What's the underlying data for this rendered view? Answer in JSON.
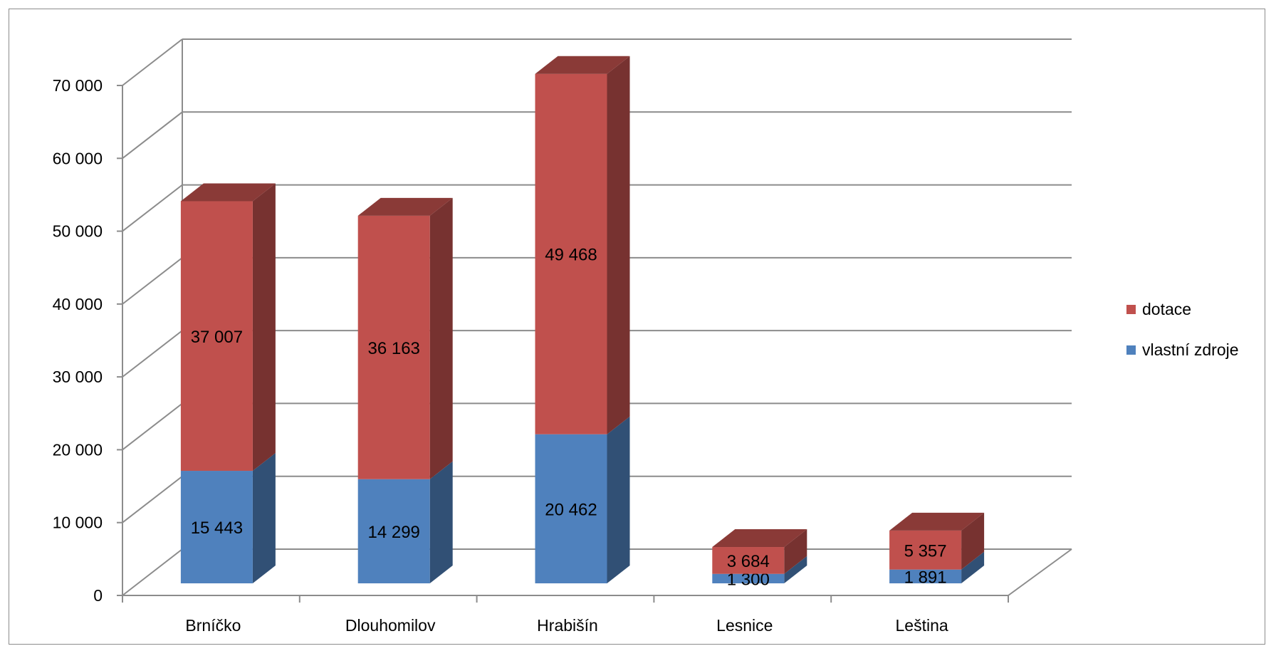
{
  "chart_data": {
    "type": "bar",
    "stacked": true,
    "three_d": true,
    "title": "",
    "xlabel": "",
    "ylabel": "",
    "categories": [
      "Brníčko",
      "Dlouhomilov",
      "Hrabišín",
      "Lesnice",
      "Leština"
    ],
    "series": [
      {
        "name": "vlastní zdroje",
        "color": "#4f81bd",
        "values": [
          15443,
          14299,
          20462,
          1300,
          1891
        ],
        "labels": [
          "15 443",
          "14 299",
          "20 462",
          "1 300",
          "1 891"
        ]
      },
      {
        "name": "dotace",
        "color": "#c0504d",
        "values": [
          37007,
          36163,
          49468,
          3684,
          5357
        ],
        "labels": [
          "37 007",
          "36 163",
          "49 468",
          "3 684",
          "5 357"
        ]
      }
    ],
    "ylim": [
      0,
      70000
    ],
    "yticks": [
      0,
      10000,
      20000,
      30000,
      40000,
      50000,
      60000,
      70000
    ],
    "ytick_labels": [
      "0",
      "10 000",
      "20 000",
      "30 000",
      "40 000",
      "50 000",
      "60 000",
      "70 000"
    ],
    "grid": true,
    "legend_position": "right"
  }
}
